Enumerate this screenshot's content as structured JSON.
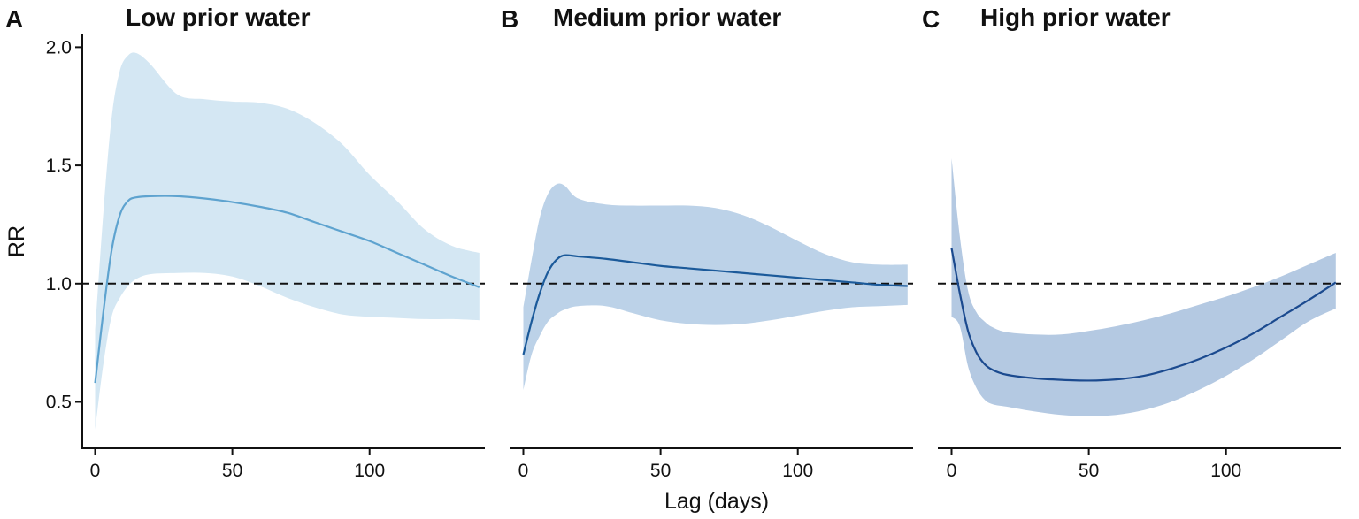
{
  "chart_data": [
    {
      "type": "line",
      "panel": "A",
      "title": "Low prior water",
      "xlabel": "",
      "ylabel": "RR",
      "xlim": [
        -5,
        142
      ],
      "ylim": [
        0.3,
        2.05
      ],
      "xticks": [
        0,
        50,
        100
      ],
      "xtick_labels": [
        "0",
        "50",
        "100"
      ],
      "yticks": [
        0.5,
        1.0,
        1.5,
        2.0
      ],
      "ytick_labels": [
        "0.5",
        "1.0",
        "1.5",
        "2.0"
      ],
      "reference_line": 1.0,
      "line_color": "#5ea3cf",
      "band_color": "#d4e7f3",
      "series": [
        {
          "name": "RR",
          "x": [
            0,
            3,
            6,
            9,
            12,
            15,
            20,
            30,
            40,
            50,
            60,
            70,
            80,
            90,
            100,
            110,
            120,
            130,
            140
          ],
          "values": [
            0.58,
            0.88,
            1.14,
            1.29,
            1.35,
            1.365,
            1.37,
            1.37,
            1.36,
            1.345,
            1.325,
            1.3,
            1.26,
            1.22,
            1.18,
            1.13,
            1.08,
            1.03,
            0.985
          ],
          "lower": [
            0.38,
            0.66,
            0.86,
            0.94,
            0.99,
            1.02,
            1.04,
            1.045,
            1.045,
            1.03,
            0.99,
            0.94,
            0.9,
            0.87,
            0.86,
            0.855,
            0.85,
            0.85,
            0.845
          ],
          "upper": [
            0.8,
            1.3,
            1.7,
            1.9,
            1.965,
            1.975,
            1.93,
            1.8,
            1.78,
            1.77,
            1.765,
            1.74,
            1.68,
            1.59,
            1.46,
            1.35,
            1.23,
            1.16,
            1.13
          ]
        }
      ]
    },
    {
      "type": "line",
      "panel": "B",
      "title": "Medium prior water",
      "xlabel": "Lag (days)",
      "ylabel": "",
      "xlim": [
        -5,
        142
      ],
      "ylim": [
        0.3,
        2.05
      ],
      "xticks": [
        0,
        50,
        100
      ],
      "xtick_labels": [
        "0",
        "50",
        "100"
      ],
      "yticks": [],
      "reference_line": 1.0,
      "line_color": "#1b5a9a",
      "band_color": "#bcd2e8",
      "series": [
        {
          "name": "RR",
          "x": [
            0,
            3,
            6,
            9,
            12,
            15,
            20,
            30,
            40,
            50,
            60,
            70,
            80,
            90,
            100,
            110,
            120,
            130,
            140
          ],
          "values": [
            0.7,
            0.84,
            0.96,
            1.05,
            1.1,
            1.12,
            1.115,
            1.105,
            1.09,
            1.075,
            1.065,
            1.055,
            1.045,
            1.035,
            1.025,
            1.015,
            1.005,
            0.995,
            0.99
          ],
          "lower": [
            0.55,
            0.7,
            0.78,
            0.84,
            0.87,
            0.89,
            0.905,
            0.905,
            0.875,
            0.845,
            0.83,
            0.825,
            0.83,
            0.845,
            0.865,
            0.885,
            0.9,
            0.905,
            0.91
          ],
          "upper": [
            0.9,
            1.1,
            1.28,
            1.38,
            1.42,
            1.415,
            1.36,
            1.335,
            1.33,
            1.33,
            1.33,
            1.32,
            1.29,
            1.24,
            1.18,
            1.125,
            1.09,
            1.08,
            1.08
          ]
        }
      ]
    },
    {
      "type": "line",
      "panel": "C",
      "title": "High prior water",
      "xlabel": "",
      "ylabel": "",
      "xlim": [
        -5,
        142
      ],
      "ylim": [
        0.3,
        2.05
      ],
      "xticks": [
        0,
        50,
        100
      ],
      "xtick_labels": [
        "0",
        "50",
        "100"
      ],
      "yticks": [],
      "reference_line": 1.0,
      "line_color": "#1b4a8f",
      "band_color": "#b4c9e2",
      "series": [
        {
          "name": "RR",
          "x": [
            0,
            3,
            6,
            9,
            12,
            15,
            20,
            30,
            40,
            50,
            60,
            70,
            80,
            90,
            100,
            110,
            120,
            130,
            140
          ],
          "values": [
            1.15,
            0.96,
            0.8,
            0.71,
            0.66,
            0.635,
            0.615,
            0.6,
            0.593,
            0.59,
            0.595,
            0.61,
            0.64,
            0.68,
            0.73,
            0.79,
            0.86,
            0.93,
            1.005
          ],
          "lower": [
            0.86,
            0.82,
            0.65,
            0.56,
            0.51,
            0.49,
            0.48,
            0.46,
            0.445,
            0.44,
            0.445,
            0.465,
            0.5,
            0.55,
            0.61,
            0.68,
            0.76,
            0.84,
            0.895
          ],
          "upper": [
            1.53,
            1.2,
            0.97,
            0.88,
            0.84,
            0.815,
            0.795,
            0.785,
            0.785,
            0.8,
            0.82,
            0.845,
            0.875,
            0.91,
            0.945,
            0.985,
            1.03,
            1.08,
            1.13
          ]
        }
      ]
    }
  ]
}
